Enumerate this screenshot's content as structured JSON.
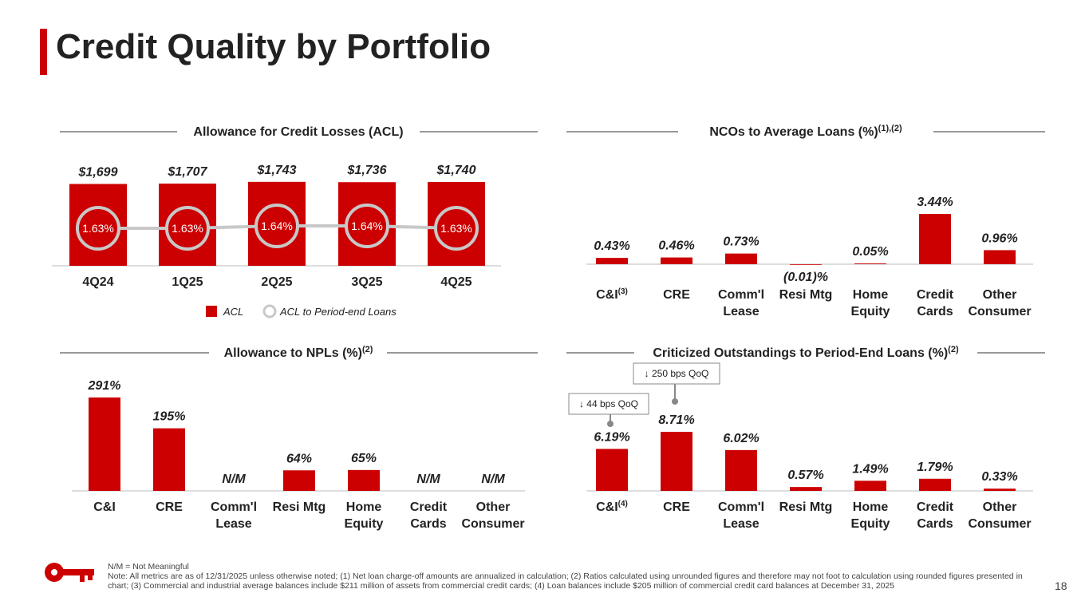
{
  "title": "Credit Quality by Portfolio",
  "page_number": "18",
  "footnote": {
    "line1": "N/M = Not Meaningful",
    "line2": "Note: All metrics are as of 12/31/2025 unless otherwise noted; (1) Net loan charge-off amounts are annualized in calculation; (2) Ratios calculated using unrounded figures and therefore may not foot to calculation using rounded figures presented in chart; (3) Commercial and industrial average balances include $211 million of assets from commercial credit cards; (4) Loan balances include $205 million of commercial credit card balances at December 31, 2025"
  },
  "colors": {
    "accent": "#cc0000",
    "line": "#c8c8c8",
    "text": "#222222"
  },
  "logo_icon": "key-icon",
  "chart_data": [
    {
      "type": "bar",
      "title": "Allowance for Credit Losses (ACL)",
      "categories": [
        "4Q24",
        "1Q25",
        "2Q25",
        "3Q25",
        "4Q25"
      ],
      "series": [
        {
          "name": "ACL",
          "values": [
            1699,
            1707,
            1743,
            1736,
            1740
          ],
          "labels": [
            "$1,699",
            "$1,707",
            "$1,743",
            "$1,736",
            "$1,740"
          ]
        },
        {
          "name": "ACL to Period-end Loans",
          "type": "line",
          "values": [
            1.63,
            1.63,
            1.64,
            1.64,
            1.63
          ],
          "labels": [
            "1.63%",
            "1.63%",
            "1.64%",
            "1.64%",
            "1.63%"
          ]
        }
      ],
      "legend_position": "bottom"
    },
    {
      "type": "bar",
      "title": "NCOs to Average Loans (%)",
      "title_sup": "(1),(2)",
      "categories": [
        {
          "lines": [
            "C&I"
          ],
          "sup": "(3)"
        },
        {
          "lines": [
            "CRE"
          ]
        },
        {
          "lines": [
            "Comm'l",
            "Lease"
          ]
        },
        {
          "lines": [
            "Resi Mtg"
          ]
        },
        {
          "lines": [
            "Home",
            "Equity"
          ]
        },
        {
          "lines": [
            "Credit",
            "Cards"
          ]
        },
        {
          "lines": [
            "Other",
            "Consumer"
          ]
        }
      ],
      "values": [
        0.43,
        0.46,
        0.73,
        -0.01,
        0.05,
        3.44,
        0.96
      ],
      "labels": [
        "0.43%",
        "0.46%",
        "0.73%",
        "(0.01)%",
        "0.05%",
        "3.44%",
        "0.96%"
      ]
    },
    {
      "type": "bar",
      "title": "Allowance to NPLs (%)",
      "title_sup": "(2)",
      "categories": [
        {
          "lines": [
            "C&I"
          ]
        },
        {
          "lines": [
            "CRE"
          ]
        },
        {
          "lines": [
            "Comm'l",
            "Lease"
          ]
        },
        {
          "lines": [
            "Resi Mtg"
          ]
        },
        {
          "lines": [
            "Home",
            "Equity"
          ]
        },
        {
          "lines": [
            "Credit",
            "Cards"
          ]
        },
        {
          "lines": [
            "Other",
            "Consumer"
          ]
        }
      ],
      "values": [
        291,
        195,
        null,
        64,
        65,
        null,
        null
      ],
      "labels": [
        "291%",
        "195%",
        "N/M",
        "64%",
        "65%",
        "N/M",
        "N/M"
      ]
    },
    {
      "type": "bar",
      "title": "Criticized Outstandings to Period-End Loans (%)",
      "title_sup": "(2)",
      "categories": [
        {
          "lines": [
            "C&I"
          ],
          "sup": "(4)"
        },
        {
          "lines": [
            "CRE"
          ]
        },
        {
          "lines": [
            "Comm'l",
            "Lease"
          ]
        },
        {
          "lines": [
            "Resi Mtg"
          ]
        },
        {
          "lines": [
            "Home",
            "Equity"
          ]
        },
        {
          "lines": [
            "Credit",
            "Cards"
          ]
        },
        {
          "lines": [
            "Other",
            "Consumer"
          ]
        }
      ],
      "values": [
        6.19,
        8.71,
        6.02,
        0.57,
        1.49,
        1.79,
        0.33
      ],
      "labels": [
        "6.19%",
        "8.71%",
        "6.02%",
        "0.57%",
        "1.49%",
        "1.79%",
        "0.33%"
      ],
      "annotations": [
        {
          "category_index": 0,
          "text": "↓ 44 bps QoQ"
        },
        {
          "category_index": 1,
          "text": "↓ 250 bps QoQ"
        }
      ]
    }
  ]
}
